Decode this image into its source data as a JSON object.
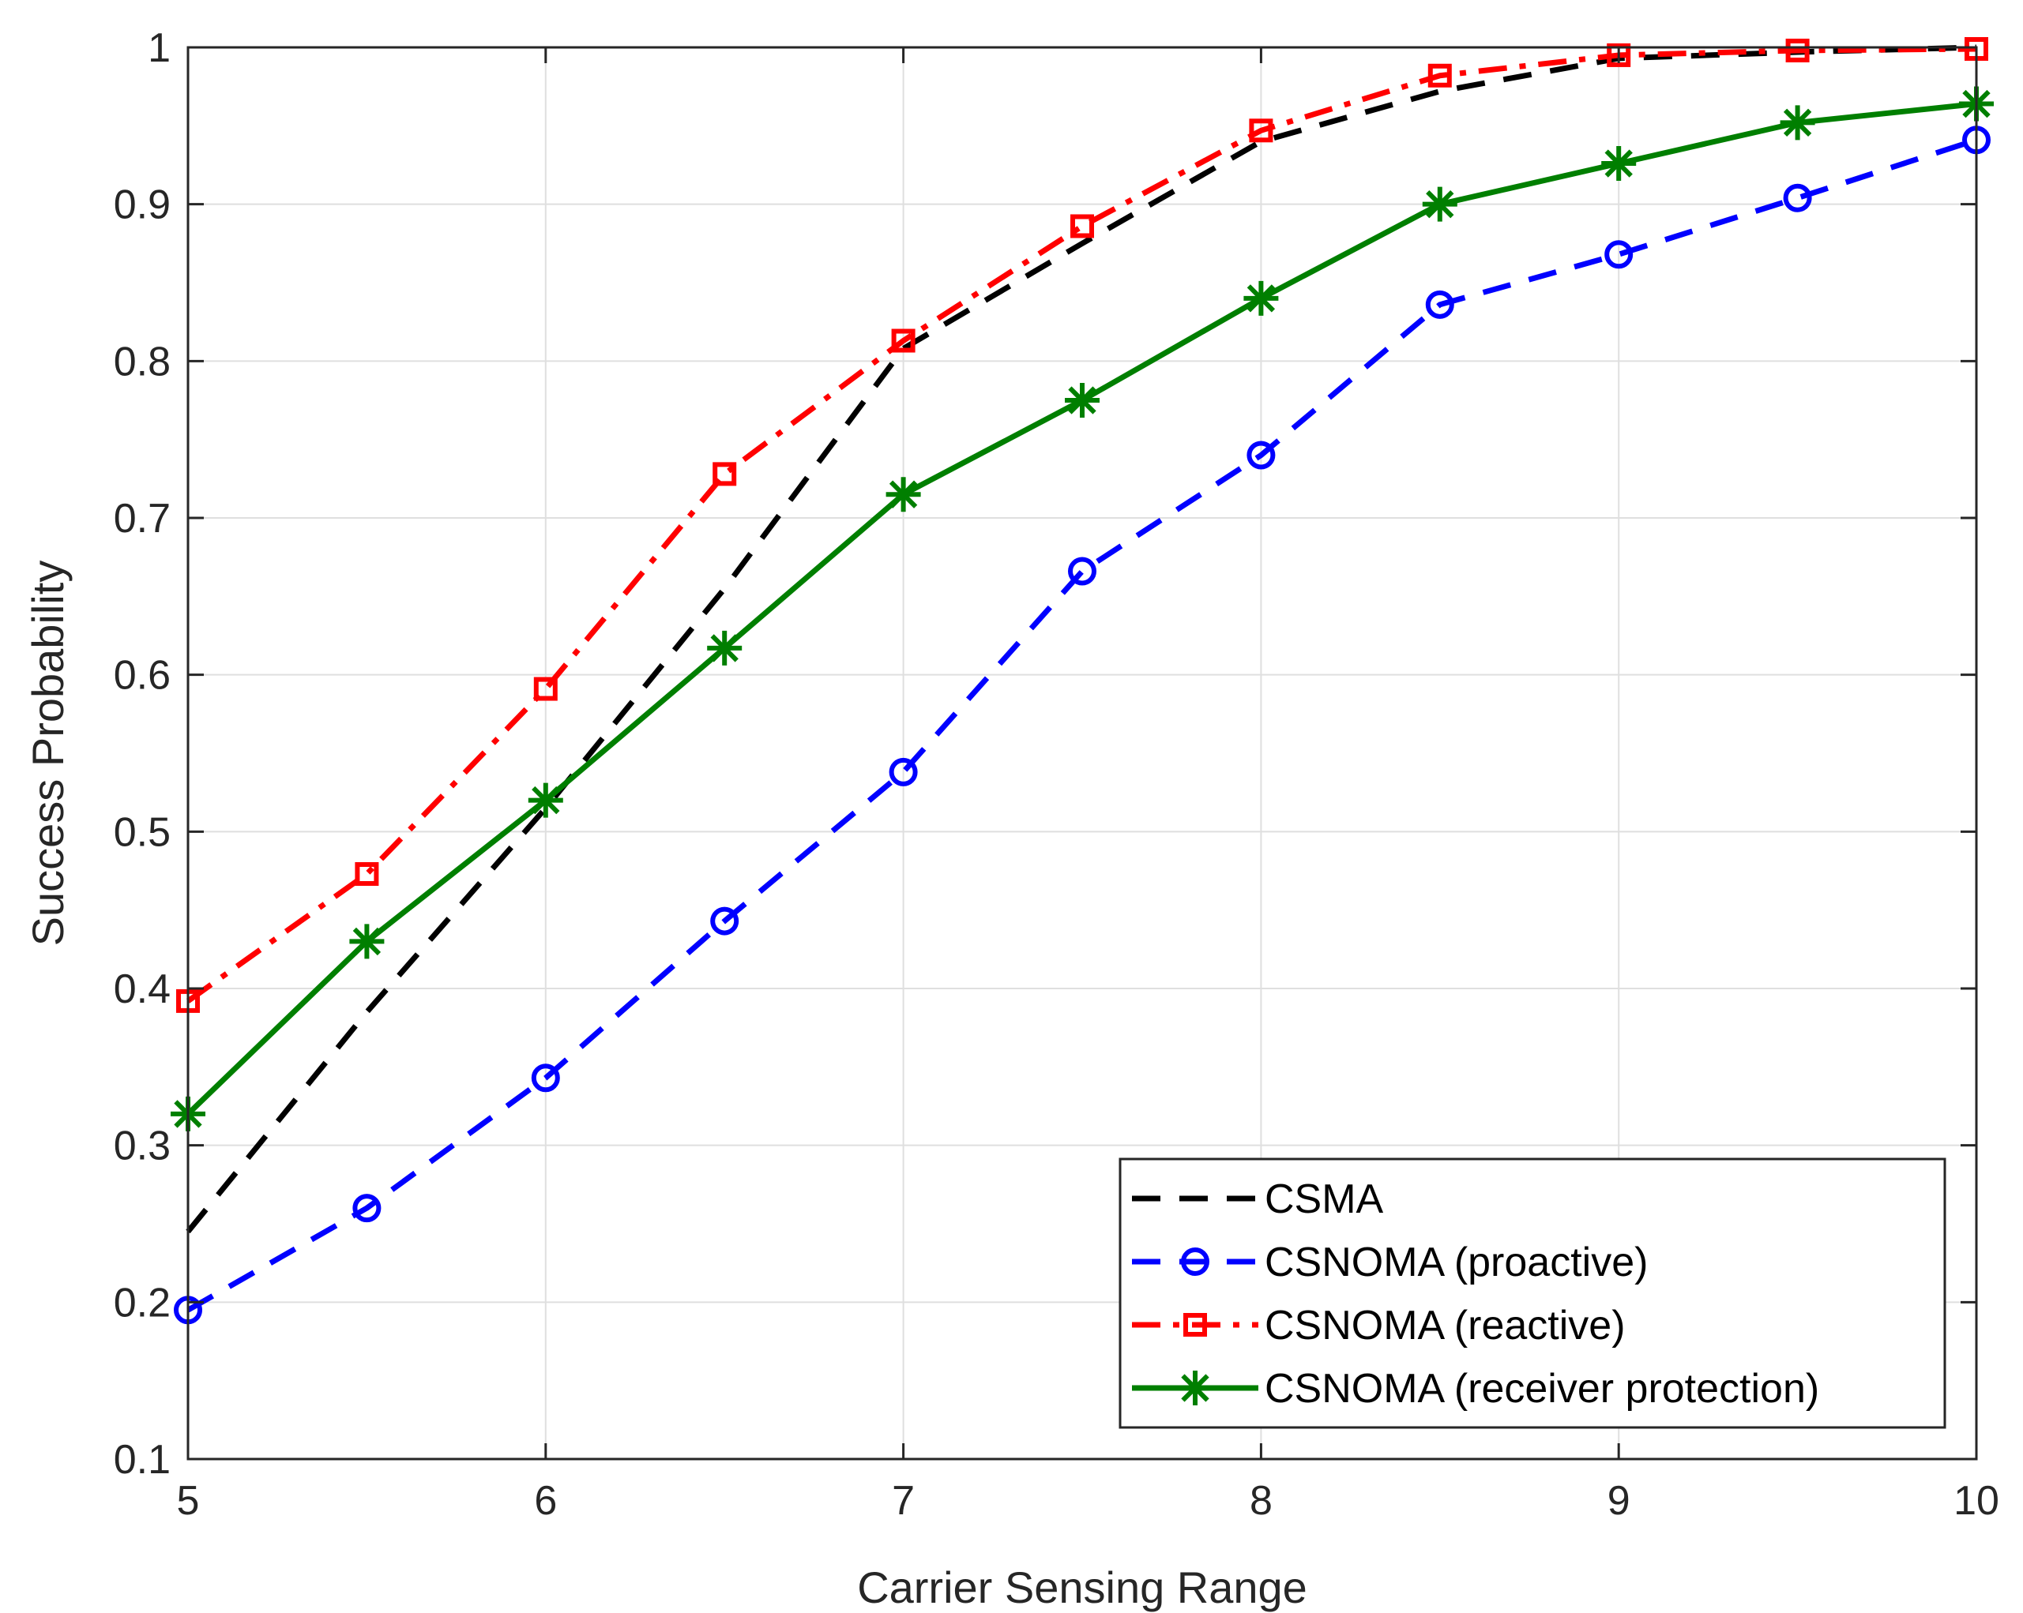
{
  "chart_data": {
    "type": "line",
    "title": "",
    "xlabel": "Carrier Sensing Range",
    "ylabel": "Success Probability",
    "xlim": [
      5,
      10
    ],
    "ylim": [
      0.1,
      1
    ],
    "xticks": [
      5,
      6,
      7,
      8,
      9,
      10
    ],
    "xtick_labels": [
      "5",
      "6",
      "7",
      "8",
      "9",
      "10"
    ],
    "yticks": [
      0.1,
      0.2,
      0.3,
      0.4,
      0.5,
      0.6,
      0.7,
      0.8,
      0.9,
      1.0
    ],
    "ytick_labels": [
      "0.1",
      "0.2",
      "0.3",
      "0.4",
      "0.5",
      "0.6",
      "0.7",
      "0.8",
      "0.9",
      "1"
    ],
    "grid": true,
    "legend_position": "bottom-right",
    "x": [
      5,
      5.5,
      6,
      6.5,
      7,
      7.5,
      8,
      8.5,
      9,
      9.5,
      10
    ],
    "series": [
      {
        "name": "CSMA",
        "color": "#000000",
        "line_style": "dashed",
        "marker": "none",
        "values": [
          0.245,
          0.385,
          0.515,
          0.655,
          0.808,
          0.875,
          0.94,
          0.972,
          0.993,
          0.997,
          1.0
        ]
      },
      {
        "name": "CSNOMA (proactive)",
        "color": "#0000ff",
        "line_style": "dashed",
        "marker": "circle",
        "values": [
          0.195,
          0.26,
          0.343,
          0.443,
          0.538,
          0.666,
          0.74,
          0.836,
          0.868,
          0.904,
          0.941
        ]
      },
      {
        "name": "CSNOMA (reactive)",
        "color": "#ff0000",
        "line_style": "dashdot",
        "marker": "square",
        "values": [
          0.392,
          0.473,
          0.591,
          0.728,
          0.813,
          0.886,
          0.947,
          0.982,
          0.995,
          0.998,
          0.999
        ]
      },
      {
        "name": "CSNOMA (receiver protection)",
        "color": "#007f00",
        "line_style": "solid",
        "marker": "asterisk",
        "values": [
          0.32,
          0.43,
          0.52,
          0.617,
          0.715,
          0.775,
          0.84,
          0.9,
          0.926,
          0.952,
          0.964
        ]
      }
    ]
  }
}
